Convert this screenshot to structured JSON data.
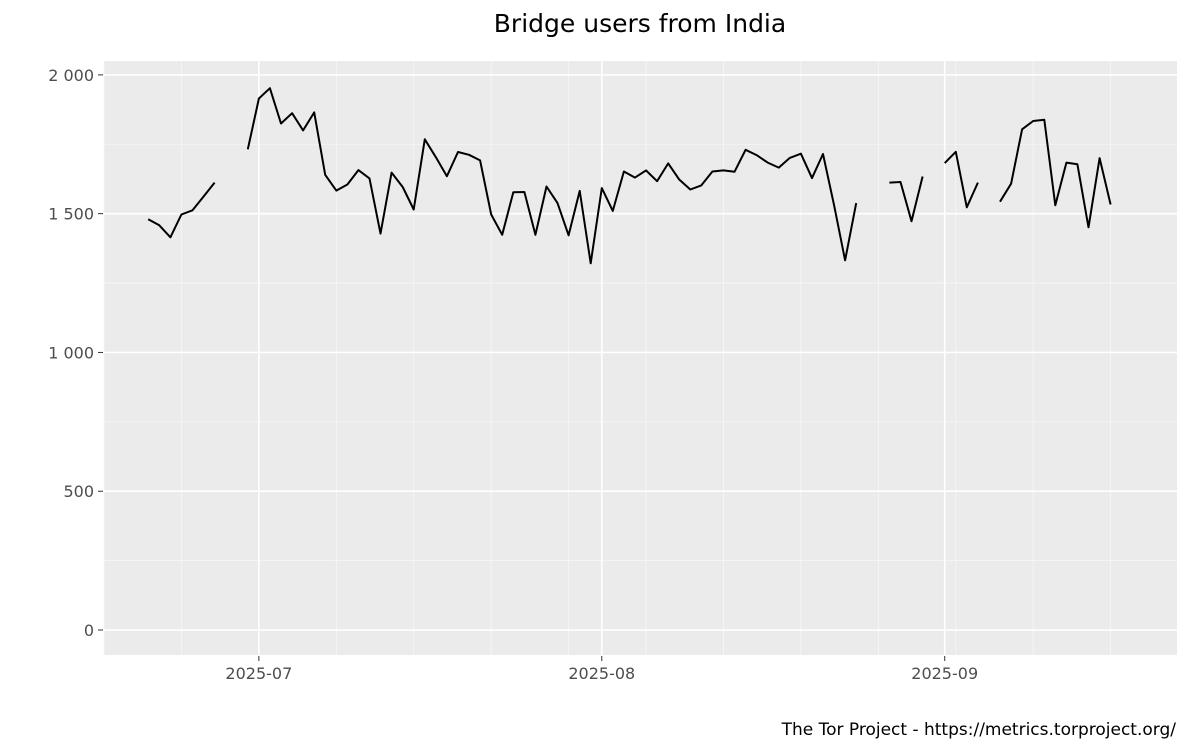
{
  "chart_data": {
    "type": "line",
    "title": "Bridge users from India",
    "caption": "The Tor Project - https://metrics.torproject.org/",
    "xlabel": "",
    "ylabel": "",
    "x_range": [
      "2025-06-17",
      "2025-09-22"
    ],
    "ylim": [
      -90,
      2050
    ],
    "y_ticks": [
      0,
      500,
      1000,
      1500,
      2000
    ],
    "y_tick_labels": [
      "0",
      "500",
      "1 000",
      "1 500",
      "2 000"
    ],
    "x_ticks": [
      "2025-07-01",
      "2025-08-01",
      "2025-09-01"
    ],
    "x_tick_labels": [
      "2025-07",
      "2025-08",
      "2025-09"
    ],
    "grid": true,
    "line_color": "#000000",
    "panel_background": "#ebebeb",
    "series": [
      {
        "dates": [
          "2025-06-21",
          "2025-06-22",
          "2025-06-23",
          "2025-06-24",
          "2025-06-25",
          "2025-06-26",
          "2025-06-27",
          "2025-06-28",
          "2025-06-29",
          "2025-06-30",
          "2025-07-01",
          "2025-07-02",
          "2025-07-03",
          "2025-07-04",
          "2025-07-05",
          "2025-07-06",
          "2025-07-07",
          "2025-07-08",
          "2025-07-09",
          "2025-07-10",
          "2025-07-11",
          "2025-07-12",
          "2025-07-13",
          "2025-07-14",
          "2025-07-15",
          "2025-07-16",
          "2025-07-17",
          "2025-07-18",
          "2025-07-19",
          "2025-07-20",
          "2025-07-21",
          "2025-07-22",
          "2025-07-23",
          "2025-07-24",
          "2025-07-25",
          "2025-07-26",
          "2025-07-27",
          "2025-07-28",
          "2025-07-29",
          "2025-07-30",
          "2025-07-31",
          "2025-08-01",
          "2025-08-02",
          "2025-08-03",
          "2025-08-04",
          "2025-08-05",
          "2025-08-06",
          "2025-08-07",
          "2025-08-08",
          "2025-08-09",
          "2025-08-10",
          "2025-08-11",
          "2025-08-12",
          "2025-08-13",
          "2025-08-14",
          "2025-08-15",
          "2025-08-16",
          "2025-08-17",
          "2025-08-18",
          "2025-08-19",
          "2025-08-20",
          "2025-08-21",
          "2025-08-22",
          "2025-08-23",
          "2025-08-24",
          "2025-08-25",
          "2025-08-26",
          "2025-08-27",
          "2025-08-28",
          "2025-08-29",
          "2025-08-30",
          "2025-08-31",
          "2025-09-01",
          "2025-09-02",
          "2025-09-03",
          "2025-09-04",
          "2025-09-05",
          "2025-09-06",
          "2025-09-07",
          "2025-09-08",
          "2025-09-09",
          "2025-09-10",
          "2025-09-11",
          "2025-09-12",
          "2025-09-13",
          "2025-09-14",
          "2025-09-15",
          "2025-09-16",
          "2025-09-17",
          "2025-09-18"
        ],
        "values": [
          1480,
          1458,
          1415,
          1497,
          1512,
          1562,
          1612,
          null,
          null,
          1732,
          1915,
          1952,
          1825,
          1862,
          1800,
          1865,
          1640,
          1583,
          1605,
          1657,
          1627,
          1428,
          1648,
          1596,
          1515,
          1768,
          1703,
          1635,
          1722,
          1712,
          1692,
          1497,
          1424,
          1577,
          1578,
          1424,
          1598,
          1538,
          1422,
          1582,
          1321,
          1592,
          1510,
          1652,
          1630,
          1656,
          1617,
          1681,
          1623,
          1587,
          1602,
          1652,
          1656,
          1651,
          1730,
          1711,
          1684,
          1666,
          1701,
          1716,
          1628,
          1715,
          1530,
          1332,
          1538,
          null,
          null,
          1612,
          1614,
          1473,
          1634,
          null,
          1682,
          1723,
          1523,
          1612,
          null,
          1543,
          1608,
          1804,
          1834,
          1838,
          1530,
          1684,
          1678,
          1451,
          1700,
          1533,
          null,
          null
        ]
      }
    ]
  }
}
